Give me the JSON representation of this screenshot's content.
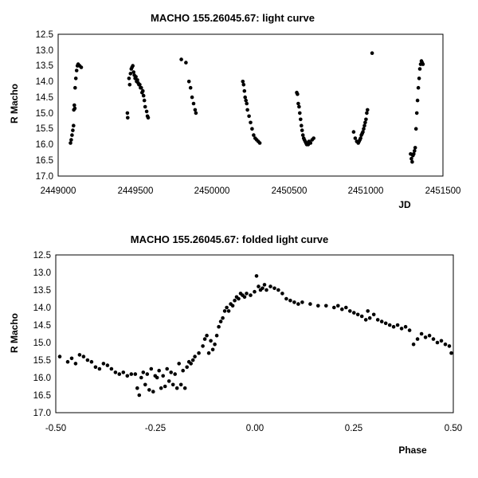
{
  "colors": {
    "background": "#ffffff",
    "axis": "#000000",
    "point": "#000000"
  },
  "chart_data": [
    {
      "type": "scatter",
      "title": "MACHO 155.26045.67: light curve",
      "xlabel": "JD",
      "ylabel": "R Macho",
      "xlim": [
        2449000,
        2451500
      ],
      "ylim": [
        17.0,
        12.5
      ],
      "y_inverted": true,
      "grid": false,
      "legend": "none",
      "xticks": [
        "2449000",
        "2449500",
        "2450000",
        "2450500",
        "2451000",
        "2451500"
      ],
      "yticks": [
        "12.5",
        "13.0",
        "13.5",
        "14.0",
        "14.5",
        "15.0",
        "15.5",
        "16.0",
        "16.5",
        "17.0"
      ],
      "points": [
        [
          2449080,
          15.95
        ],
        [
          2449085,
          15.85
        ],
        [
          2449090,
          15.7
        ],
        [
          2449095,
          15.55
        ],
        [
          2449100,
          15.4
        ],
        [
          2449102,
          14.9
        ],
        [
          2449105,
          14.75
        ],
        [
          2449108,
          14.85
        ],
        [
          2449110,
          14.2
        ],
        [
          2449115,
          13.9
        ],
        [
          2449120,
          13.65
        ],
        [
          2449125,
          13.5
        ],
        [
          2449130,
          13.45
        ],
        [
          2449140,
          13.5
        ],
        [
          2449150,
          13.55
        ],
        [
          2449450,
          15.0
        ],
        [
          2449452,
          15.15
        ],
        [
          2449460,
          13.9
        ],
        [
          2449465,
          14.1
        ],
        [
          2449470,
          13.75
        ],
        [
          2449475,
          13.6
        ],
        [
          2449480,
          13.55
        ],
        [
          2449485,
          13.5
        ],
        [
          2449490,
          13.7
        ],
        [
          2449495,
          13.8
        ],
        [
          2449500,
          13.9
        ],
        [
          2449505,
          13.85
        ],
        [
          2449510,
          14.0
        ],
        [
          2449515,
          13.95
        ],
        [
          2449520,
          14.05
        ],
        [
          2449525,
          14.1
        ],
        [
          2449530,
          14.1
        ],
        [
          2449535,
          14.2
        ],
        [
          2449540,
          14.2
        ],
        [
          2449545,
          14.35
        ],
        [
          2449550,
          14.3
        ],
        [
          2449555,
          14.45
        ],
        [
          2449560,
          14.6
        ],
        [
          2449565,
          14.8
        ],
        [
          2449575,
          14.95
        ],
        [
          2449580,
          15.1
        ],
        [
          2449585,
          15.15
        ],
        [
          2449800,
          13.3
        ],
        [
          2449830,
          13.4
        ],
        [
          2449850,
          14.0
        ],
        [
          2449860,
          14.2
        ],
        [
          2449870,
          14.5
        ],
        [
          2449880,
          14.7
        ],
        [
          2449890,
          14.9
        ],
        [
          2449895,
          15.0
        ],
        [
          2450200,
          14.0
        ],
        [
          2450205,
          14.1
        ],
        [
          2450210,
          14.3
        ],
        [
          2450215,
          14.5
        ],
        [
          2450220,
          14.6
        ],
        [
          2450225,
          14.7
        ],
        [
          2450230,
          14.9
        ],
        [
          2450240,
          15.1
        ],
        [
          2450250,
          15.3
        ],
        [
          2450260,
          15.5
        ],
        [
          2450270,
          15.7
        ],
        [
          2450280,
          15.8
        ],
        [
          2450290,
          15.85
        ],
        [
          2450300,
          15.9
        ],
        [
          2450310,
          15.95
        ],
        [
          2450550,
          14.35
        ],
        [
          2450555,
          14.4
        ],
        [
          2450560,
          14.7
        ],
        [
          2450565,
          14.8
        ],
        [
          2450570,
          15.0
        ],
        [
          2450575,
          15.2
        ],
        [
          2450580,
          15.4
        ],
        [
          2450585,
          15.55
        ],
        [
          2450590,
          15.7
        ],
        [
          2450595,
          15.8
        ],
        [
          2450600,
          15.85
        ],
        [
          2450605,
          15.9
        ],
        [
          2450610,
          15.95
        ],
        [
          2450615,
          16.0
        ],
        [
          2450620,
          15.95
        ],
        [
          2450625,
          16.0
        ],
        [
          2450630,
          15.9
        ],
        [
          2450640,
          15.95
        ],
        [
          2450650,
          15.85
        ],
        [
          2450660,
          15.8
        ],
        [
          2450920,
          15.6
        ],
        [
          2450930,
          15.8
        ],
        [
          2450940,
          15.9
        ],
        [
          2450950,
          15.95
        ],
        [
          2450955,
          15.9
        ],
        [
          2450960,
          15.85
        ],
        [
          2450965,
          15.8
        ],
        [
          2450970,
          15.7
        ],
        [
          2450975,
          15.65
        ],
        [
          2450980,
          15.6
        ],
        [
          2450985,
          15.5
        ],
        [
          2450990,
          15.4
        ],
        [
          2450995,
          15.3
        ],
        [
          2451000,
          15.2
        ],
        [
          2451005,
          15.0
        ],
        [
          2451010,
          14.9
        ],
        [
          2451040,
          13.1
        ],
        [
          2451290,
          16.3
        ],
        [
          2451295,
          16.45
        ],
        [
          2451300,
          16.55
        ],
        [
          2451305,
          16.35
        ],
        [
          2451310,
          16.3
        ],
        [
          2451315,
          16.2
        ],
        [
          2451320,
          16.1
        ],
        [
          2451325,
          15.5
        ],
        [
          2451330,
          15.0
        ],
        [
          2451335,
          14.6
        ],
        [
          2451340,
          14.2
        ],
        [
          2451345,
          13.9
        ],
        [
          2451350,
          13.6
        ],
        [
          2451355,
          13.45
        ],
        [
          2451360,
          13.35
        ],
        [
          2451365,
          13.4
        ],
        [
          2451370,
          13.45
        ]
      ]
    },
    {
      "type": "scatter",
      "title": "MACHO 155.26045.67: folded light curve",
      "xlabel": "Phase",
      "ylabel": "R Macho",
      "xlim": [
        -0.5,
        0.5
      ],
      "ylim": [
        17.0,
        12.5
      ],
      "y_inverted": true,
      "grid": false,
      "legend": "none",
      "xticks": [
        "-0.50",
        "-0.25",
        "0.00",
        "0.25",
        "0.50"
      ],
      "yticks": [
        "12.5",
        "13.0",
        "13.5",
        "14.0",
        "14.5",
        "15.0",
        "15.5",
        "16.0",
        "16.5",
        "17.0"
      ],
      "points": [
        [
          -0.49,
          15.4
        ],
        [
          -0.47,
          15.55
        ],
        [
          -0.46,
          15.45
        ],
        [
          -0.45,
          15.6
        ],
        [
          -0.44,
          15.35
        ],
        [
          -0.43,
          15.4
        ],
        [
          -0.42,
          15.5
        ],
        [
          -0.41,
          15.55
        ],
        [
          -0.4,
          15.7
        ],
        [
          -0.39,
          15.75
        ],
        [
          -0.38,
          15.6
        ],
        [
          -0.37,
          15.65
        ],
        [
          -0.36,
          15.75
        ],
        [
          -0.35,
          15.85
        ],
        [
          -0.34,
          15.9
        ],
        [
          -0.33,
          15.85
        ],
        [
          -0.32,
          15.95
        ],
        [
          -0.31,
          15.9
        ],
        [
          -0.3,
          15.9
        ],
        [
          -0.295,
          16.3
        ],
        [
          -0.29,
          16.5
        ],
        [
          -0.285,
          16.0
        ],
        [
          -0.28,
          15.85
        ],
        [
          -0.275,
          16.2
        ],
        [
          -0.27,
          15.9
        ],
        [
          -0.265,
          16.35
        ],
        [
          -0.26,
          15.75
        ],
        [
          -0.255,
          16.4
        ],
        [
          -0.25,
          15.95
        ],
        [
          -0.245,
          16.0
        ],
        [
          -0.24,
          15.8
        ],
        [
          -0.235,
          16.3
        ],
        [
          -0.23,
          15.95
        ],
        [
          -0.225,
          16.25
        ],
        [
          -0.22,
          15.75
        ],
        [
          -0.215,
          16.1
        ],
        [
          -0.21,
          15.85
        ],
        [
          -0.205,
          16.2
        ],
        [
          -0.2,
          15.9
        ],
        [
          -0.195,
          16.3
        ],
        [
          -0.19,
          15.6
        ],
        [
          -0.185,
          16.2
        ],
        [
          -0.18,
          15.8
        ],
        [
          -0.175,
          16.3
        ],
        [
          -0.17,
          15.7
        ],
        [
          -0.165,
          15.55
        ],
        [
          -0.16,
          15.6
        ],
        [
          -0.155,
          15.5
        ],
        [
          -0.15,
          15.4
        ],
        [
          -0.14,
          15.3
        ],
        [
          -0.13,
          15.1
        ],
        [
          -0.125,
          14.9
        ],
        [
          -0.12,
          14.8
        ],
        [
          -0.115,
          15.3
        ],
        [
          -0.11,
          14.95
        ],
        [
          -0.105,
          15.2
        ],
        [
          -0.1,
          15.05
        ],
        [
          -0.095,
          14.8
        ],
        [
          -0.09,
          14.55
        ],
        [
          -0.085,
          14.4
        ],
        [
          -0.08,
          14.3
        ],
        [
          -0.075,
          14.1
        ],
        [
          -0.07,
          14.0
        ],
        [
          -0.065,
          14.1
        ],
        [
          -0.06,
          13.9
        ],
        [
          -0.055,
          13.95
        ],
        [
          -0.05,
          13.8
        ],
        [
          -0.045,
          13.7
        ],
        [
          -0.04,
          13.75
        ],
        [
          -0.035,
          13.6
        ],
        [
          -0.03,
          13.65
        ],
        [
          -0.025,
          13.7
        ],
        [
          -0.02,
          13.6
        ],
        [
          -0.01,
          13.65
        ],
        [
          0.0,
          13.55
        ],
        [
          0.005,
          13.1
        ],
        [
          0.01,
          13.4
        ],
        [
          0.015,
          13.5
        ],
        [
          0.02,
          13.45
        ],
        [
          0.025,
          13.35
        ],
        [
          0.03,
          13.5
        ],
        [
          0.04,
          13.4
        ],
        [
          0.05,
          13.45
        ],
        [
          0.06,
          13.5
        ],
        [
          0.07,
          13.6
        ],
        [
          0.08,
          13.75
        ],
        [
          0.09,
          13.8
        ],
        [
          0.1,
          13.85
        ],
        [
          0.11,
          13.9
        ],
        [
          0.12,
          13.85
        ],
        [
          0.14,
          13.9
        ],
        [
          0.16,
          13.95
        ],
        [
          0.18,
          13.95
        ],
        [
          0.2,
          14.0
        ],
        [
          0.21,
          13.95
        ],
        [
          0.22,
          14.05
        ],
        [
          0.23,
          14.0
        ],
        [
          0.24,
          14.1
        ],
        [
          0.25,
          14.15
        ],
        [
          0.26,
          14.2
        ],
        [
          0.27,
          14.25
        ],
        [
          0.28,
          14.35
        ],
        [
          0.285,
          14.1
        ],
        [
          0.29,
          14.3
        ],
        [
          0.3,
          14.2
        ],
        [
          0.31,
          14.35
        ],
        [
          0.32,
          14.4
        ],
        [
          0.33,
          14.45
        ],
        [
          0.34,
          14.5
        ],
        [
          0.35,
          14.55
        ],
        [
          0.36,
          14.5
        ],
        [
          0.37,
          14.6
        ],
        [
          0.38,
          14.55
        ],
        [
          0.39,
          14.65
        ],
        [
          0.4,
          15.05
        ],
        [
          0.41,
          14.9
        ],
        [
          0.42,
          14.75
        ],
        [
          0.43,
          14.85
        ],
        [
          0.44,
          14.8
        ],
        [
          0.45,
          14.9
        ],
        [
          0.46,
          15.0
        ],
        [
          0.47,
          14.95
        ],
        [
          0.48,
          15.05
        ],
        [
          0.49,
          15.1
        ],
        [
          0.495,
          15.3
        ]
      ]
    }
  ]
}
